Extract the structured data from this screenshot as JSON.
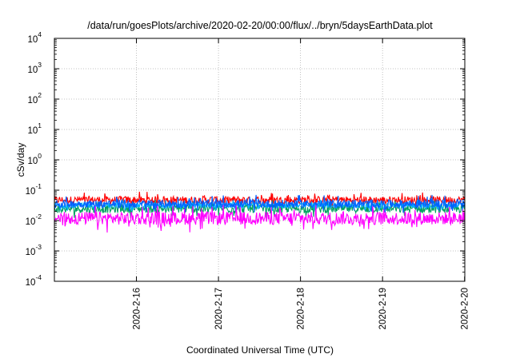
{
  "chart_data": {
    "type": "line",
    "title": "/data/run/goesPlots/archive/2020-02-20/00:00/flux/../bryn/5daysEarthData.plot",
    "xlabel": "Coordinated Universal Time (UTC)",
    "ylabel": "cSv/day",
    "x_range": [
      "2020-02-15T00:00",
      "2020-02-20T00:04"
    ],
    "ylim": [
      0.0001,
      10000
    ],
    "y_scale": "log",
    "grid": true,
    "legend": "none",
    "x_ticks": [
      {
        "t": "2020-02-16T00:00",
        "label": "2020-2-16"
      },
      {
        "t": "2020-02-17T00:00",
        "label": "2020-2-17"
      },
      {
        "t": "2020-02-18T00:00",
        "label": "2020-2-18"
      },
      {
        "t": "2020-02-19T00:00",
        "label": "2020-2-19"
      },
      {
        "t": "2020-02-20T00:00",
        "label": "2020-2-20"
      }
    ],
    "y_ticks": [
      {
        "value": 0.0001,
        "base": "10",
        "exp": "-4"
      },
      {
        "value": 0.001,
        "base": "10",
        "exp": "-3"
      },
      {
        "value": 0.01,
        "base": "10",
        "exp": "-2"
      },
      {
        "value": 0.1,
        "base": "10",
        "exp": "-1"
      },
      {
        "value": 1,
        "base": "10",
        "exp": "0"
      },
      {
        "value": 10,
        "base": "10",
        "exp": "1"
      },
      {
        "value": 100,
        "base": "10",
        "exp": "2"
      },
      {
        "value": 1000,
        "base": "10",
        "exp": "3"
      },
      {
        "value": 10000,
        "base": "10",
        "exp": "4"
      }
    ],
    "series": [
      {
        "color": "#ff0000",
        "typical_range": [
          0.025,
          0.09
        ],
        "x": [
          "2020-02-15T00:00",
          "2020-02-15T12:00",
          "2020-02-16T00:00",
          "2020-02-16T12:00",
          "2020-02-17T00:00",
          "2020-02-17T12:00",
          "2020-02-18T00:00",
          "2020-02-18T12:00",
          "2020-02-19T00:00",
          "2020-02-19T12:00",
          "2020-02-20T00:00"
        ],
        "values": [
          0.05,
          0.06,
          0.05,
          0.055,
          0.05,
          0.055,
          0.05,
          0.055,
          0.05,
          0.055,
          0.05
        ]
      },
      {
        "color": "#00a060",
        "typical_range": [
          0.012,
          0.05
        ],
        "x": [
          "2020-02-15T00:00",
          "2020-02-15T12:00",
          "2020-02-16T00:00",
          "2020-02-16T12:00",
          "2020-02-17T00:00",
          "2020-02-17T12:00",
          "2020-02-18T00:00",
          "2020-02-18T12:00",
          "2020-02-19T00:00",
          "2020-02-19T12:00",
          "2020-02-20T00:00"
        ],
        "values": [
          0.025,
          0.03,
          0.025,
          0.028,
          0.025,
          0.028,
          0.025,
          0.028,
          0.025,
          0.028,
          0.025
        ]
      },
      {
        "color": "#0060ff",
        "typical_range": [
          0.018,
          0.07
        ],
        "x": [
          "2020-02-15T00:00",
          "2020-02-15T12:00",
          "2020-02-16T00:00",
          "2020-02-16T12:00",
          "2020-02-17T00:00",
          "2020-02-17T12:00",
          "2020-02-18T00:00",
          "2020-02-18T12:00",
          "2020-02-19T00:00",
          "2020-02-19T12:00",
          "2020-02-20T00:00"
        ],
        "values": [
          0.035,
          0.04,
          0.035,
          0.038,
          0.035,
          0.038,
          0.035,
          0.038,
          0.035,
          0.038,
          0.035
        ]
      },
      {
        "color": "#00b0ff",
        "typical_range": [
          0.02,
          0.05
        ],
        "x": [
          "2020-02-15T00:00",
          "2020-02-15T12:00",
          "2020-02-16T00:00",
          "2020-02-16T12:00",
          "2020-02-17T00:00",
          "2020-02-17T12:00",
          "2020-02-18T00:00",
          "2020-02-18T12:00",
          "2020-02-19T00:00",
          "2020-02-19T12:00",
          "2020-02-20T00:00"
        ],
        "values": [
          0.03,
          0.033,
          0.03,
          0.032,
          0.03,
          0.032,
          0.03,
          0.032,
          0.03,
          0.032,
          0.03
        ]
      },
      {
        "color": "#ff00ff",
        "typical_range": [
          0.004,
          0.035
        ],
        "x": [
          "2020-02-15T00:00",
          "2020-02-15T12:00",
          "2020-02-16T00:00",
          "2020-02-16T12:00",
          "2020-02-17T00:00",
          "2020-02-17T12:00",
          "2020-02-18T00:00",
          "2020-02-18T12:00",
          "2020-02-19T00:00",
          "2020-02-19T12:00",
          "2020-02-20T00:00"
        ],
        "values": [
          0.008,
          0.01,
          0.008,
          0.009,
          0.008,
          0.009,
          0.008,
          0.009,
          0.008,
          0.009,
          0.008
        ]
      }
    ]
  }
}
